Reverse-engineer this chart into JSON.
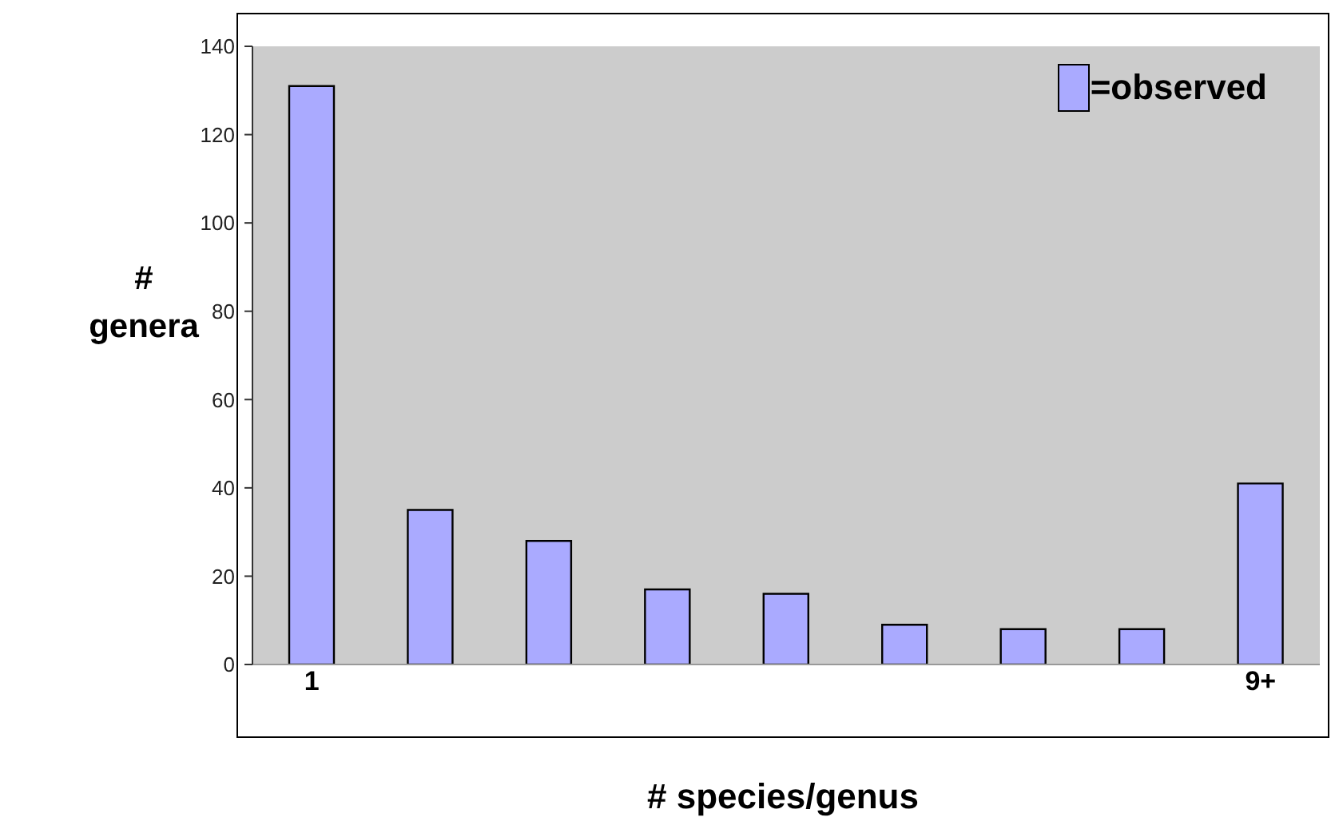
{
  "chart_data": {
    "type": "bar",
    "xlabel": "# species/genus",
    "ylabel": "# genera",
    "categories": [
      "1",
      null,
      null,
      null,
      null,
      null,
      null,
      null,
      "9+"
    ],
    "series": [
      {
        "name": "=observed",
        "color": "#aaaaff",
        "values": [
          131,
          35,
          28,
          17,
          16,
          9,
          8,
          8,
          41
        ]
      }
    ],
    "ylim": [
      0,
      140
    ],
    "yticks": [
      0,
      20,
      40,
      60,
      80,
      100,
      120,
      140
    ],
    "grid": false,
    "legend": "top right"
  }
}
